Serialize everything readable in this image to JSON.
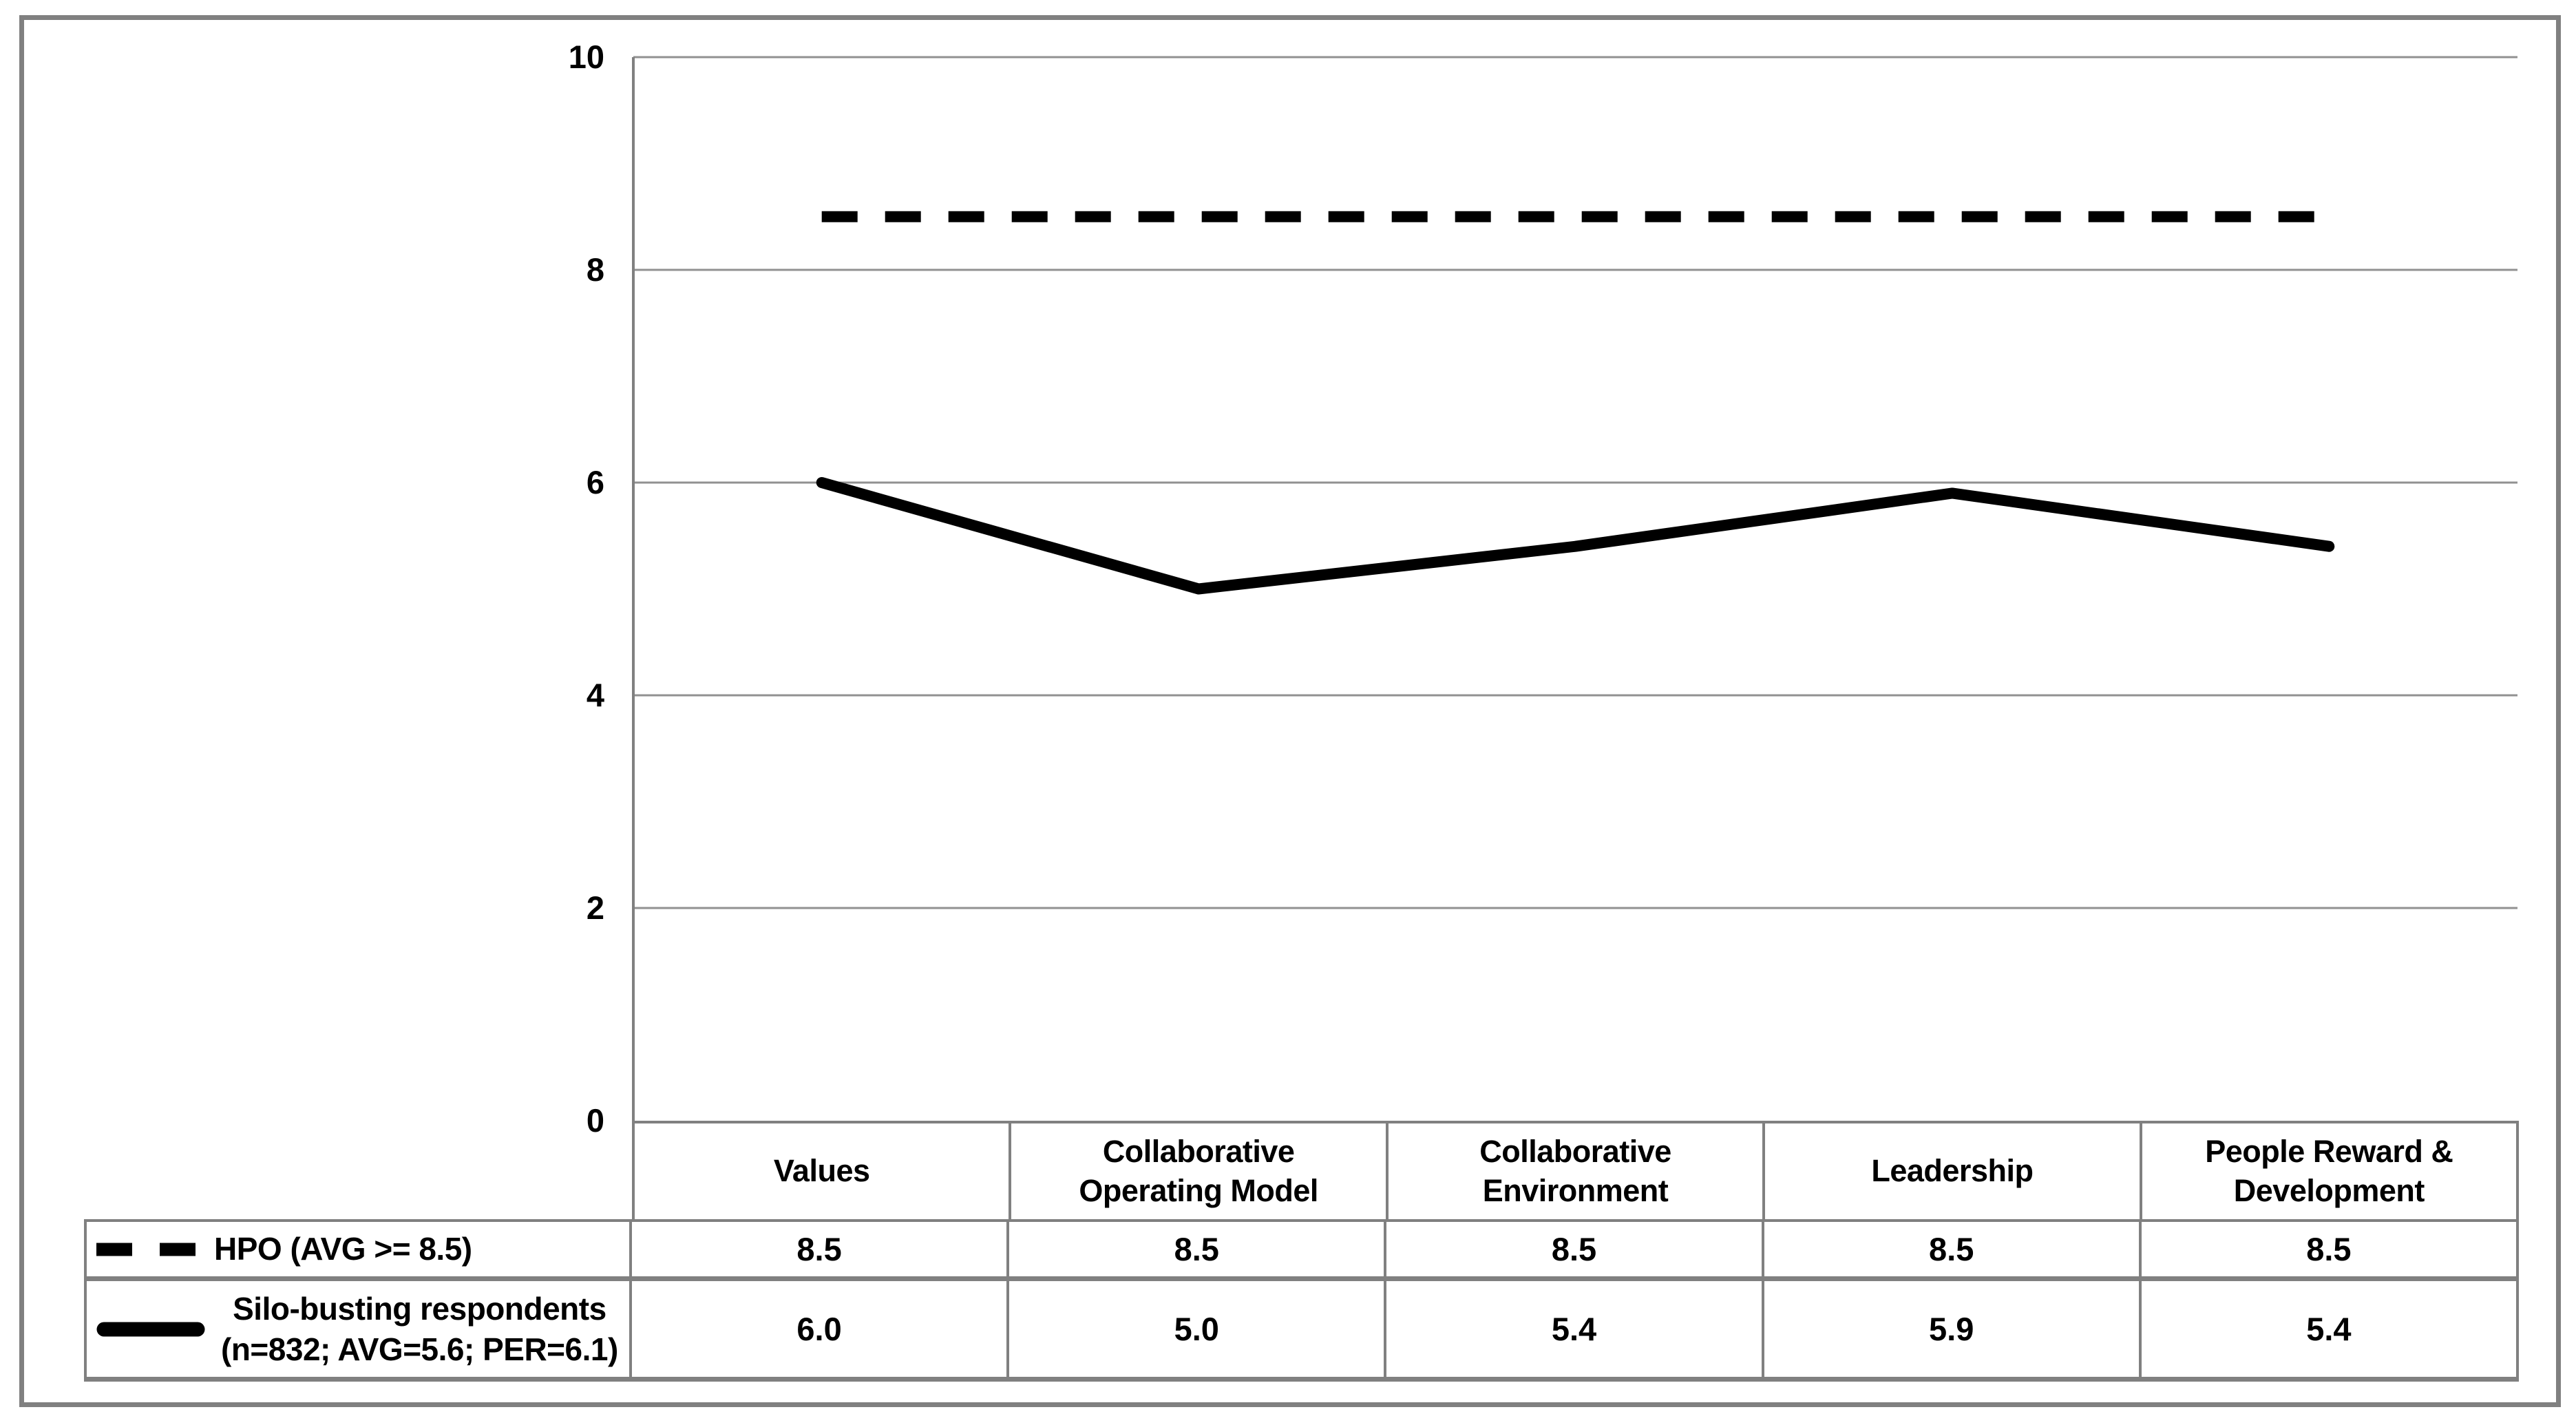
{
  "chart_data": {
    "type": "line",
    "categories": [
      "Values",
      "Collaborative Operating Model",
      "Collaborative Environment",
      "Leadership",
      "People Reward & Development"
    ],
    "series": [
      {
        "name": "HPO (AVG >= 8.5)",
        "style": "dashed",
        "values": [
          8.5,
          8.5,
          8.5,
          8.5,
          8.5
        ]
      },
      {
        "name": "Silo-busting respondents (n=832; AVG=5.6; PER=6.1)",
        "style": "solid",
        "values": [
          6.0,
          5.0,
          5.4,
          5.9,
          5.4
        ]
      }
    ],
    "title": "",
    "xlabel": "",
    "ylabel": "",
    "ylim": [
      0,
      10
    ],
    "yticks": [
      0,
      2,
      4,
      6,
      8,
      10
    ],
    "grid": true,
    "legend_position": "bottom-left-table"
  },
  "colors": {
    "line": "#000000",
    "grid": "#919191",
    "axis": "#808080",
    "table_border": "#808080",
    "background": "#ffffff",
    "text": "#000000"
  },
  "table": {
    "categories": [
      "Values",
      "Collaborative Operating Model",
      "Collaborative Environment",
      "Leadership",
      "People Reward & Development"
    ],
    "rows": [
      {
        "legend_style": "dashed",
        "label_lines": [
          "HPO (AVG >= 8.5)"
        ],
        "values": [
          "8.5",
          "8.5",
          "8.5",
          "8.5",
          "8.5"
        ]
      },
      {
        "legend_style": "solid",
        "label_lines": [
          "Silo-busting respondents",
          "(n=832; AVG=5.6; PER=6.1)"
        ],
        "values": [
          "6.0",
          "5.0",
          "5.4",
          "5.9",
          "5.4"
        ]
      }
    ]
  }
}
